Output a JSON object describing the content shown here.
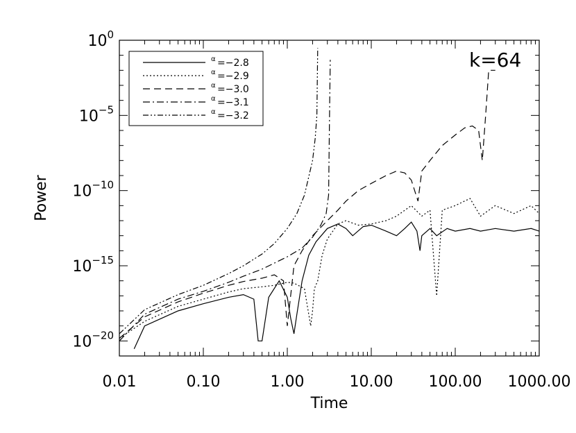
{
  "chart_data": {
    "type": "line",
    "title": "",
    "xlabel": "Time",
    "ylabel": "Power",
    "x_scale": "log",
    "y_scale": "log",
    "xlim": [
      0.01,
      1000
    ],
    "ylim": [
      1e-21,
      1
    ],
    "grid": false,
    "legend_position": "top-left",
    "annotation": "k=64",
    "x_ticks": [
      {
        "value": 0.01,
        "label": "0.01"
      },
      {
        "value": 0.1,
        "label": "0.10"
      },
      {
        "value": 1,
        "label": "1.00"
      },
      {
        "value": 10,
        "label": "10.00"
      },
      {
        "value": 100,
        "label": "100.00"
      },
      {
        "value": 1000,
        "label": "1000.00"
      }
    ],
    "y_ticks": [
      {
        "value": 1e-20,
        "base": "10",
        "exp": "−20"
      },
      {
        "value": 1e-15,
        "base": "10",
        "exp": "−15"
      },
      {
        "value": 1e-10,
        "base": "10",
        "exp": "−10"
      },
      {
        "value": 1e-05,
        "base": "10",
        "exp": "−5"
      },
      {
        "value": 1,
        "base": "10",
        "exp": "0"
      }
    ],
    "series": [
      {
        "name": "=−2.8",
        "symbol": "α",
        "dash": "solid",
        "x": [
          0.015,
          0.02,
          0.05,
          0.1,
          0.2,
          0.3,
          0.4,
          0.45,
          0.5,
          0.6,
          0.8,
          1.0,
          1.1,
          1.2,
          1.3,
          1.5,
          1.8,
          2.2,
          3.0,
          4.0,
          5.0,
          6.0,
          8.0,
          10.0,
          15.0,
          20.0,
          25.0,
          30.0,
          35.0,
          38.0,
          40.0,
          50.0,
          60.0,
          80.0,
          100.0,
          150.0,
          200.0,
          300.0,
          500.0,
          800.0,
          1000.0
        ],
        "y": [
          3e-21,
          1e-19,
          1e-18,
          3e-18,
          8e-18,
          1.2e-17,
          6e-18,
          1e-20,
          1e-20,
          8e-18,
          1e-16,
          8e-18,
          3e-19,
          3e-20,
          6e-19,
          1e-16,
          5e-15,
          4e-14,
          3e-13,
          6e-13,
          3e-13,
          1e-13,
          4e-13,
          5e-13,
          2e-13,
          1e-13,
          3e-13,
          8e-13,
          2e-13,
          1e-14,
          1e-13,
          3e-13,
          1e-13,
          3e-13,
          2e-13,
          3e-13,
          2e-13,
          3e-13,
          2e-13,
          3e-13,
          2e-13
        ]
      },
      {
        "name": "=−2.9",
        "symbol": "α",
        "dash": "dotted",
        "x": [
          0.01,
          0.02,
          0.05,
          0.1,
          0.2,
          0.3,
          0.5,
          0.7,
          1.0,
          1.2,
          1.6,
          1.9,
          2.0,
          2.1,
          2.3,
          2.6,
          3.0,
          4.0,
          5.0,
          7.0,
          10.0,
          15.0,
          20.0,
          30.0,
          40.0,
          50.0,
          60.0,
          70.0,
          100.0,
          150.0,
          200.0,
          300.0,
          500.0,
          800.0,
          1000.0
        ],
        "y": [
          1.5e-20,
          2e-19,
          2e-18,
          6e-18,
          1.8e-17,
          3e-17,
          4e-17,
          5e-17,
          8e-17,
          7e-17,
          3e-17,
          1e-19,
          1e-18,
          3e-17,
          1e-16,
          5e-15,
          6e-14,
          6e-13,
          1e-12,
          5e-13,
          6e-13,
          1e-12,
          2e-12,
          1e-11,
          2e-12,
          5e-12,
          1e-17,
          5e-12,
          1e-11,
          3e-11,
          2e-12,
          1e-11,
          3e-12,
          1e-11,
          3e-12
        ]
      },
      {
        "name": "=−3.0",
        "symbol": "α",
        "dash": "dashed",
        "x": [
          0.01,
          0.02,
          0.05,
          0.1,
          0.2,
          0.3,
          0.5,
          0.7,
          0.9,
          1.0,
          1.2,
          1.5,
          2.0,
          3.0,
          4.0,
          5.0,
          7.0,
          10.0,
          15.0,
          20.0,
          25.0,
          30.0,
          36.0,
          40.0,
          50.0,
          70.0,
          100.0,
          130.0,
          160.0,
          190.0,
          210.0,
          230.0,
          250.0,
          300.0
        ],
        "y": [
          1.5e-20,
          4e-19,
          4e-18,
          1.5e-17,
          5e-17,
          9e-17,
          1.5e-16,
          2.5e-16,
          1e-16,
          1e-19,
          1e-15,
          1e-14,
          1e-13,
          1e-12,
          5e-12,
          2e-11,
          1e-10,
          3e-10,
          1e-09,
          2e-09,
          1.5e-09,
          5e-10,
          2e-11,
          2e-09,
          1e-08,
          1e-07,
          5e-07,
          1.5e-06,
          2e-06,
          1e-06,
          1e-08,
          1e-05,
          0.01,
          0.01
        ]
      },
      {
        "name": "=−3.1",
        "symbol": "α",
        "dash": "dashdot",
        "x": [
          0.01,
          0.02,
          0.05,
          0.1,
          0.2,
          0.3,
          0.5,
          0.7,
          1.0,
          1.5,
          2.0,
          2.5,
          2.9,
          3.1,
          3.2,
          3.25
        ],
        "y": [
          1e-20,
          6e-19,
          6e-18,
          2e-17,
          8e-17,
          2e-16,
          6e-16,
          1.5e-15,
          4e-15,
          1.5e-14,
          8e-14,
          5e-13,
          3e-12,
          5e-11,
          0.0001,
          0.05
        ]
      },
      {
        "name": "=−3.2",
        "symbol": "α",
        "dash": "dashdotdot",
        "x": [
          0.01,
          0.02,
          0.05,
          0.1,
          0.2,
          0.3,
          0.5,
          0.7,
          1.0,
          1.3,
          1.6,
          2.0,
          2.15,
          2.25,
          2.3
        ],
        "y": [
          3e-20,
          1.2e-18,
          1.2e-17,
          5e-17,
          3e-16,
          1e-15,
          6e-15,
          3e-14,
          3e-13,
          3e-12,
          5e-11,
          1e-08,
          3e-07,
          1e-05,
          0.3
        ]
      }
    ]
  }
}
